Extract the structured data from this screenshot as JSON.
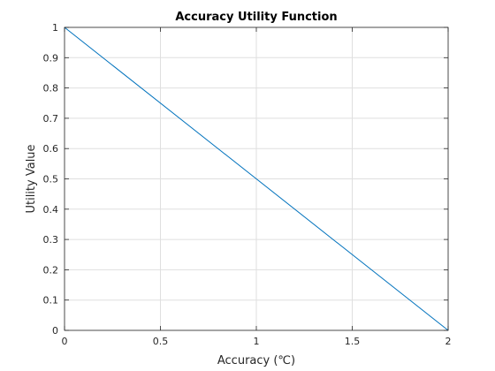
{
  "chart_data": {
    "type": "line",
    "title": "Accuracy Utility Function",
    "xlabel": "Accuracy (℃)",
    "ylabel": "Utility Value",
    "xlim": [
      0,
      2
    ],
    "ylim": [
      0,
      1
    ],
    "xticks": [
      0,
      0.5,
      1,
      1.5,
      2
    ],
    "xtick_labels": [
      "0",
      "0.5",
      "1",
      "1.5",
      "2"
    ],
    "yticks": [
      0,
      0.1,
      0.2,
      0.3,
      0.4,
      0.5,
      0.6,
      0.7,
      0.8,
      0.9,
      1
    ],
    "ytick_labels": [
      "0",
      "0.1",
      "0.2",
      "0.3",
      "0.4",
      "0.5",
      "0.6",
      "0.7",
      "0.8",
      "0.9",
      "1"
    ],
    "grid": true,
    "series": [
      {
        "x": [
          0,
          2
        ],
        "y": [
          1,
          0
        ],
        "color": "#0072BD"
      }
    ]
  }
}
